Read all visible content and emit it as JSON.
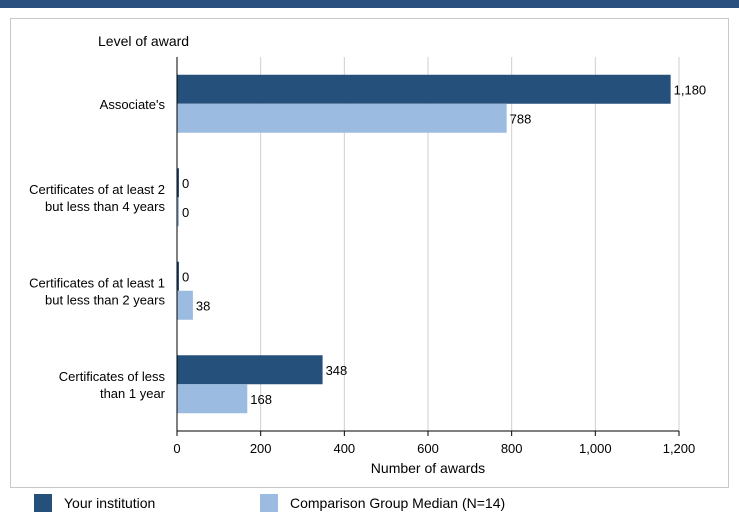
{
  "chart_data": {
    "type": "bar",
    "orientation": "horizontal",
    "ylabel": "Level of award",
    "xlabel": "Number of awards",
    "categories": [
      [
        "Associate's"
      ],
      [
        "Certificates of at least 2",
        "but less than 4 years"
      ],
      [
        "Certificates of at least 1",
        "but  less than 2 years"
      ],
      [
        "Certificates of less",
        "than 1 year"
      ]
    ],
    "series": [
      {
        "name": "Your institution",
        "values": [
          1180,
          0,
          0,
          348
        ],
        "labels": [
          "1,180",
          "0",
          "0",
          "348"
        ],
        "color": "#25507c"
      },
      {
        "name": "Comparison Group Median (N=14)",
        "values": [
          788,
          0,
          38,
          168
        ],
        "labels": [
          "788",
          "0",
          "38",
          "168"
        ],
        "color": "#9cbbe0"
      }
    ],
    "xlim": [
      0,
      1200
    ],
    "xticks": [
      0,
      200,
      400,
      600,
      800,
      1000,
      1200
    ],
    "xtick_labels": [
      "0",
      "200",
      "400",
      "600",
      "800",
      "1,000",
      "1,200"
    ],
    "grid": true,
    "legend": "bottom"
  }
}
